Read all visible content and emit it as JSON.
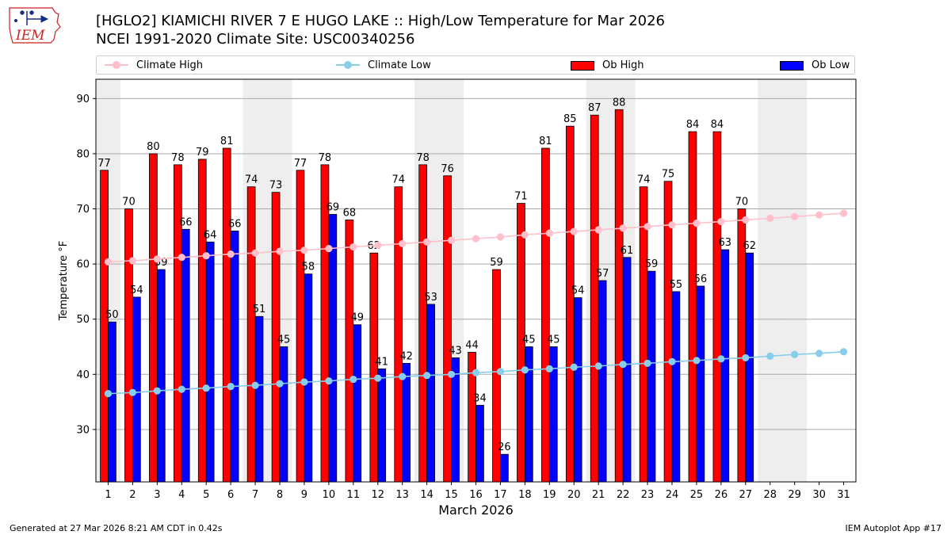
{
  "header": {
    "logo_text": "IEM",
    "title_line1": "[HGLO2] KIAMICHI RIVER 7 E HUGO LAKE :: High/Low Temperature for Mar 2026",
    "title_line2": "NCEI 1991-2020 Climate Site: USC00340256"
  },
  "legend": {
    "climate_high": "Climate High",
    "climate_low": "Climate Low",
    "ob_high": "Ob High",
    "ob_low": "Ob Low"
  },
  "footer": {
    "generated": "Generated at 27 Mar 2026 8:21 AM CDT in 0.42s",
    "app": "IEM Autoplot App #17"
  },
  "colors": {
    "ob_high": "#ff0000",
    "ob_low": "#0000ff",
    "climate_high": "#ffc0cb",
    "climate_low": "#87ceeb",
    "weekend_shade": "#eeeeee",
    "grid": "#aaaaaa"
  },
  "chart_data": {
    "type": "bar",
    "xlabel": "March 2026",
    "ylabel": "Temperature °F",
    "ylim": [
      20.5,
      93.5
    ],
    "yticks": [
      30,
      40,
      50,
      60,
      70,
      80,
      90
    ],
    "xlim": [
      0.5,
      31.5
    ],
    "grid": true,
    "legend_position": "top",
    "weekend_days": [
      1,
      7,
      8,
      14,
      15,
      21,
      22,
      28,
      29
    ],
    "days": [
      1,
      2,
      3,
      4,
      5,
      6,
      7,
      8,
      9,
      10,
      11,
      12,
      13,
      14,
      15,
      16,
      17,
      18,
      19,
      20,
      21,
      22,
      23,
      24,
      25,
      26,
      27,
      28,
      29,
      30,
      31
    ],
    "series": [
      {
        "name": "Ob High",
        "kind": "bar",
        "values": [
          77,
          70,
          80,
          78,
          79,
          81,
          74,
          73,
          77,
          78,
          68,
          62,
          74,
          78,
          76,
          44,
          59,
          71,
          81,
          85,
          87,
          88,
          74,
          75,
          84,
          84,
          70,
          null,
          null,
          null,
          null
        ],
        "labels": [
          77,
          70,
          80,
          78,
          79,
          81,
          74,
          73,
          77,
          78,
          68,
          62,
          74,
          78,
          76,
          44,
          59,
          71,
          81,
          85,
          87,
          88,
          74,
          75,
          84,
          84,
          70,
          null,
          null,
          null,
          null
        ]
      },
      {
        "name": "Ob Low",
        "kind": "bar",
        "values": [
          49.5,
          54,
          59,
          66.3,
          64,
          66,
          50.5,
          45,
          58.2,
          69,
          49,
          41,
          42,
          52.7,
          43,
          34.4,
          25.5,
          45,
          45,
          53.9,
          57,
          61.2,
          58.7,
          55,
          56,
          62.6,
          62
        ],
        "labels": [
          50,
          54,
          59,
          66,
          64,
          66,
          51,
          45,
          58,
          69,
          49,
          41,
          42,
          53,
          43,
          34,
          26,
          45,
          45,
          54,
          57,
          61,
          59,
          55,
          56,
          63,
          62
        ]
      },
      {
        "name": "Climate High",
        "kind": "line",
        "values": [
          60.4,
          60.6,
          60.9,
          61.2,
          61.5,
          61.8,
          62.0,
          62.3,
          62.5,
          62.8,
          63.1,
          63.4,
          63.7,
          64.0,
          64.3,
          64.6,
          64.9,
          65.3,
          65.6,
          65.9,
          66.2,
          66.5,
          66.8,
          67.1,
          67.4,
          67.7,
          68.0,
          68.3,
          68.6,
          68.9,
          69.2
        ]
      },
      {
        "name": "Climate Low",
        "kind": "line",
        "values": [
          36.5,
          36.7,
          37.0,
          37.3,
          37.5,
          37.8,
          38.0,
          38.3,
          38.6,
          38.8,
          39.1,
          39.3,
          39.6,
          39.8,
          40.0,
          40.3,
          40.5,
          40.8,
          41.0,
          41.3,
          41.5,
          41.8,
          42.0,
          42.3,
          42.5,
          42.8,
          43.0,
          43.3,
          43.6,
          43.8,
          44.1
        ]
      }
    ]
  }
}
